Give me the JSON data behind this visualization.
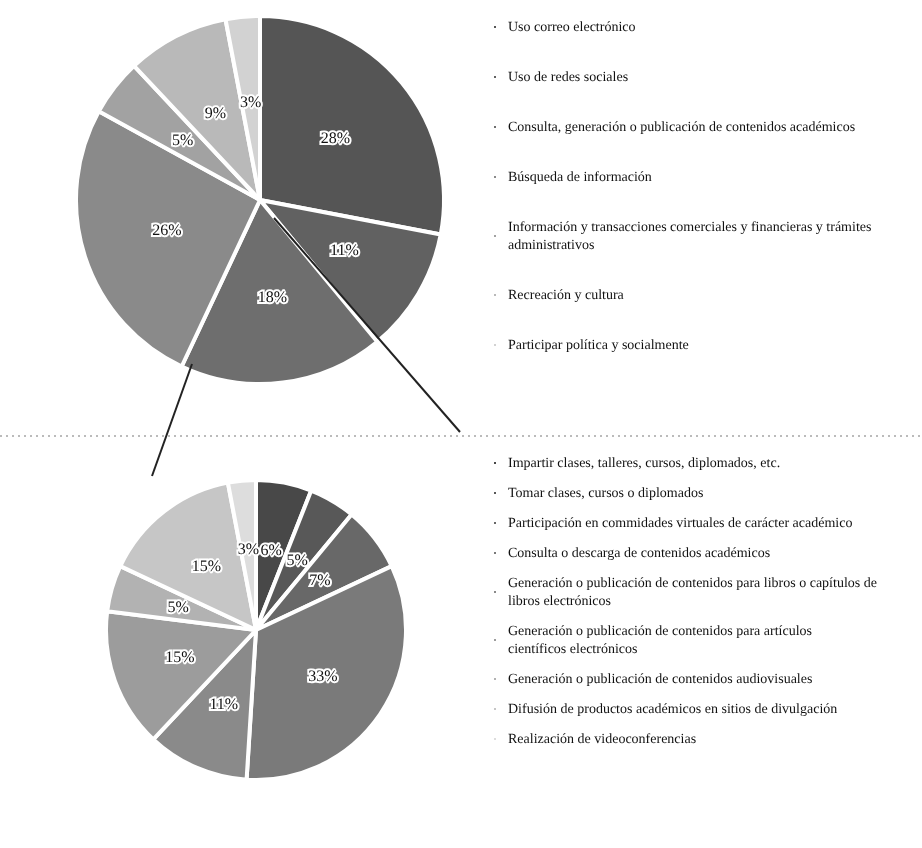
{
  "chart_data": [
    {
      "type": "pie",
      "categories": [
        "Uso correo electrónico",
        "Uso de redes sociales",
        "Consulta, generación o publicación de contenidos académicos",
        "Búsqueda de información",
        "Información y transacciones comerciales y financieras y trámites administrativos",
        "Recreación y cultura",
        "Participar política y socialmente"
      ],
      "values": [
        28,
        11,
        18,
        26,
        5,
        9,
        3
      ],
      "value_labels": [
        "28%",
        "11%",
        "18%",
        "26%",
        "5%",
        "9%",
        "3%"
      ],
      "colors": [
        "#555555",
        "#616161",
        "#6e6e6e",
        "#8a8a8a",
        "#a2a2a2",
        "#b9b9b9",
        "#d2d2d2"
      ],
      "legend": "right"
    },
    {
      "type": "pie",
      "categories": [
        "Impartir clases, talleres, cursos, diplomados, etc.",
        "Tomar clases, cursos o diplomados",
        "Participación en commidades virtuales de carácter académico",
        "Consulta o descarga de contenidos académicos",
        "Generación o publicación de contenidos para libros o capítulos de libros electrónicos",
        "Generación o publicación de contenidos para artículos científicos electrónicos",
        "Generación o publicación de contenidos audiovisuales",
        "Difusión de productos académicos en sitios de divulgación",
        "Realización de videoconferencias"
      ],
      "values": [
        6,
        5,
        7,
        33,
        11,
        15,
        5,
        15,
        3
      ],
      "value_labels": [
        "6%",
        "5%",
        "7%",
        "33%",
        "11%",
        "15%",
        "5%",
        "15%",
        "3%"
      ],
      "colors": [
        "#484848",
        "#585858",
        "#686868",
        "#7a7a7a",
        "#8a8a8a",
        "#9c9c9c",
        "#b2b2b2",
        "#c6c6c6",
        "#dddddd"
      ],
      "legend": "right"
    }
  ]
}
